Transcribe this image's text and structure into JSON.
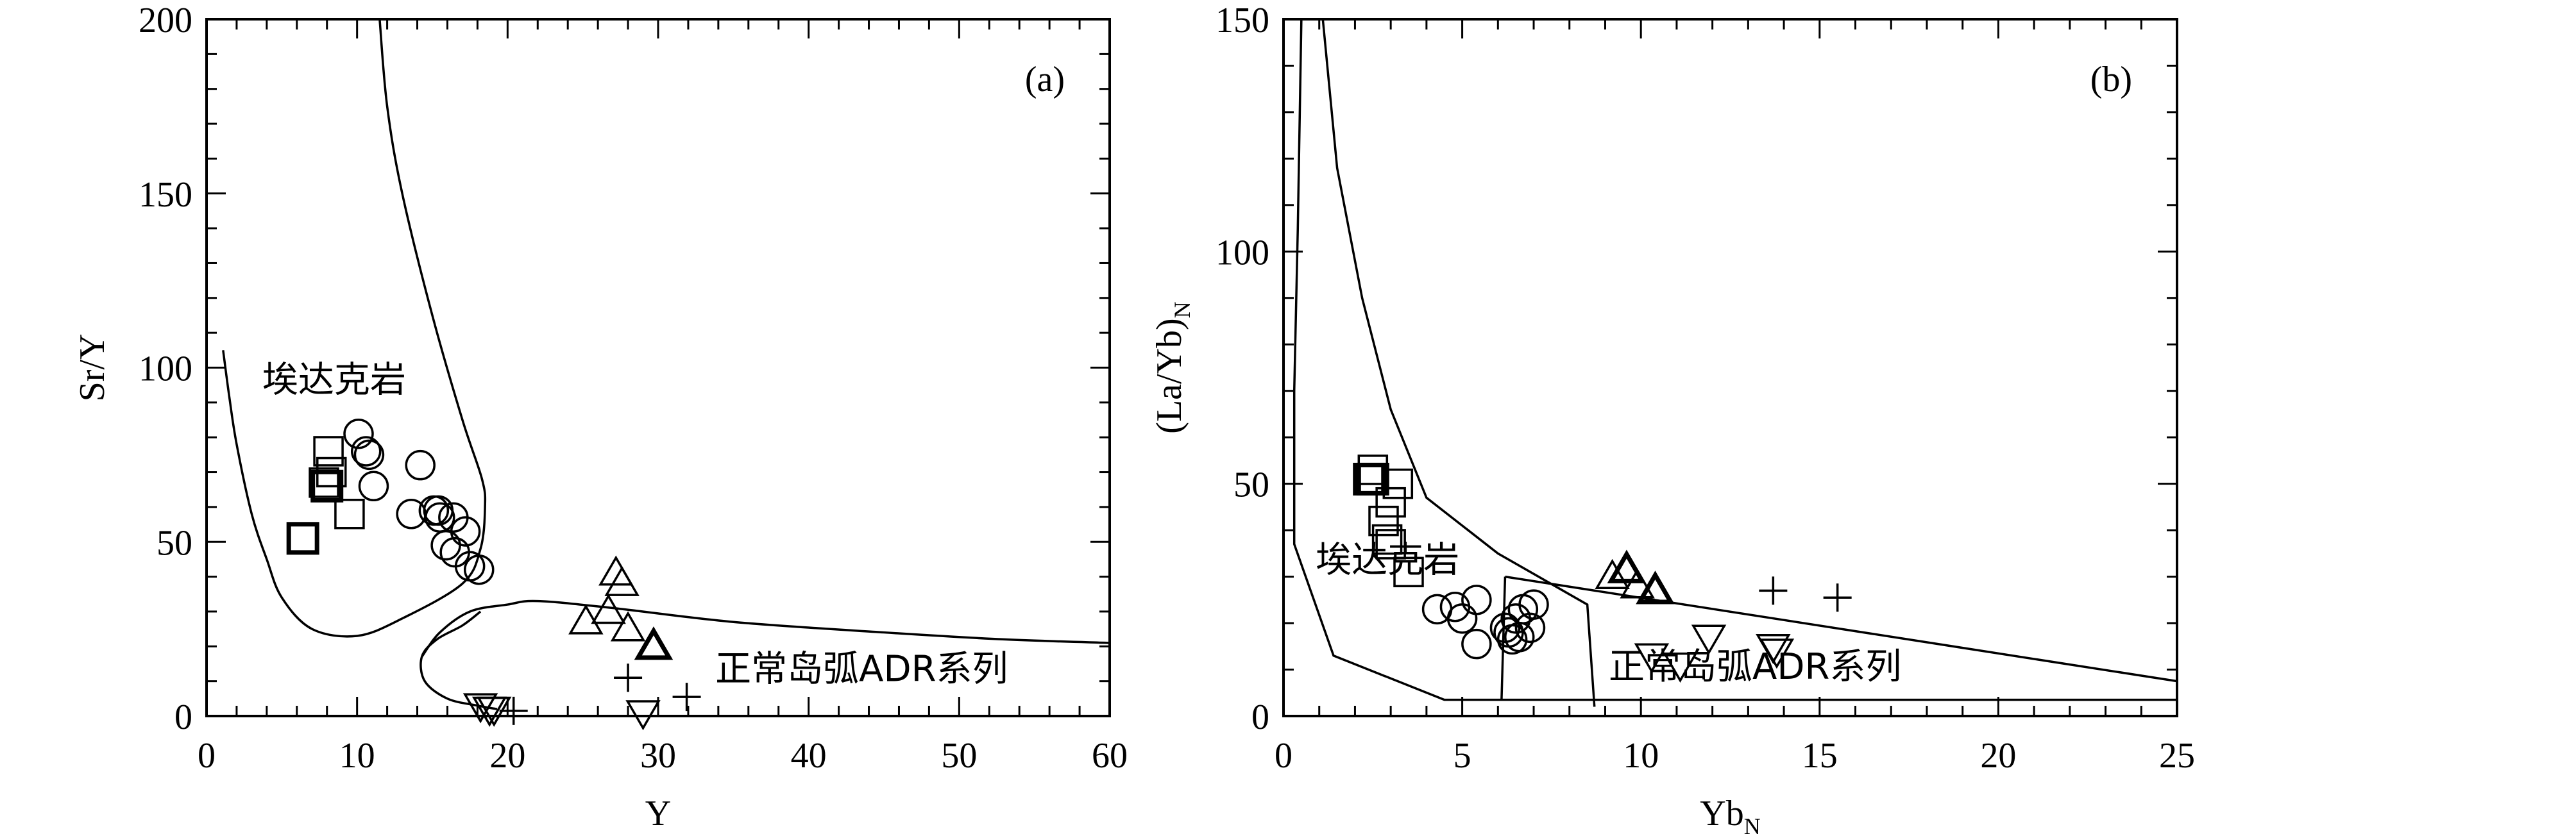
{
  "chart_data": [
    {
      "type": "scatter",
      "panel_label": "(a)",
      "xlabel": "Y",
      "ylabel": "Sr/Y",
      "xlim": [
        0,
        60
      ],
      "ylim": [
        0,
        200
      ],
      "x_ticks": [
        0,
        10,
        20,
        30,
        40,
        50,
        60
      ],
      "y_ticks": [
        0,
        50,
        100,
        150,
        200
      ],
      "x_tick_labels": [
        "0",
        "10",
        "20",
        "30",
        "40",
        "50",
        "60"
      ],
      "y_tick_labels": [
        "0",
        "50",
        "100",
        "150",
        "200"
      ],
      "grid": false,
      "region_labels": [
        {
          "text": "埃达克岩",
          "x": 3.7,
          "y": 93
        },
        {
          "text": "正常岛弧ADR系列",
          "x": 33.8,
          "y": 10
        }
      ],
      "boundary_curves": [
        {
          "points": [
            [
              11.5,
              200
            ],
            [
              12,
              175
            ],
            [
              13,
              150
            ],
            [
              15,
              115
            ],
            [
              17,
              85
            ],
            [
              18.3,
              68
            ],
            [
              18.5,
              60
            ],
            [
              18.2,
              48
            ],
            [
              17,
              38
            ],
            [
              13,
              28
            ],
            [
              10,
              23
            ],
            [
              7,
              25
            ],
            [
              5,
              34
            ],
            [
              4,
              45
            ],
            [
              3,
              58
            ],
            [
              2,
              78
            ],
            [
              1.5,
              92
            ],
            [
              1.1,
              105
            ]
          ]
        },
        {
          "points": [
            [
              18.2,
              30
            ],
            [
              17,
              26
            ],
            [
              15.3,
              22
            ],
            [
              14.3,
              17
            ],
            [
              14.5,
              10
            ],
            [
              16,
              5
            ],
            [
              18,
              3
            ],
            [
              19.3,
              2
            ]
          ]
        },
        {
          "points": [
            [
              14.3,
              17
            ],
            [
              15.5,
              24
            ],
            [
              17.5,
              30
            ],
            [
              20,
              32
            ],
            [
              22,
              33
            ],
            [
              27,
              31
            ],
            [
              35,
              27
            ],
            [
              45,
              24
            ],
            [
              53,
              22
            ],
            [
              60,
              21
            ]
          ]
        }
      ],
      "series": [
        {
          "marker": "open-square",
          "points": [
            [
              8.3,
              70
            ],
            [
              8.1,
              76
            ],
            [
              7.8,
              67
            ],
            [
              9.5,
              58
            ]
          ]
        },
        {
          "marker": "open-square-bold",
          "points": [
            [
              6.4,
              51
            ],
            [
              8,
              66
            ]
          ]
        },
        {
          "marker": "open-circle",
          "points": [
            [
              10.1,
              81
            ],
            [
              10.6,
              76
            ],
            [
              10.8,
              75
            ],
            [
              11.1,
              66
            ],
            [
              14.2,
              72
            ],
            [
              13.6,
              58
            ],
            [
              15.1,
              59
            ],
            [
              15.4,
              59
            ],
            [
              15.5,
              57
            ],
            [
              15.9,
              49
            ],
            [
              16.4,
              57
            ],
            [
              16.5,
              47
            ],
            [
              17.2,
              53
            ],
            [
              17.5,
              43
            ],
            [
              18.1,
              42
            ]
          ]
        },
        {
          "marker": "open-triangle",
          "points": [
            [
              27.2,
              41
            ],
            [
              27.6,
              38
            ],
            [
              25.2,
              27
            ],
            [
              26.7,
              30
            ],
            [
              28,
              25
            ]
          ]
        },
        {
          "marker": "open-triangle-bold",
          "points": [
            [
              29.7,
              20
            ]
          ]
        },
        {
          "marker": "open-triangle-down",
          "points": [
            [
              18.2,
              3
            ],
            [
              19.1,
              2
            ],
            [
              18.8,
              2
            ],
            [
              29,
              1
            ]
          ]
        },
        {
          "marker": "plus",
          "points": [
            [
              28,
              11
            ],
            [
              31.9,
              5.5
            ],
            [
              20.4,
              1.5
            ]
          ]
        }
      ]
    },
    {
      "type": "scatter",
      "panel_label": "(b)",
      "xlabel": "Yb",
      "xlabel_subscript": "N",
      "ylabel": "(La/Yb)",
      "ylabel_subscript": "N",
      "xlim": [
        0,
        25
      ],
      "ylim": [
        0,
        150
      ],
      "x_ticks": [
        0,
        5,
        10,
        15,
        20,
        25
      ],
      "y_ticks": [
        0,
        50,
        100,
        150
      ],
      "x_tick_labels": [
        "0",
        "5",
        "10",
        "15",
        "20",
        "25"
      ],
      "y_tick_labels": [
        "0",
        "50",
        "100",
        "150"
      ],
      "grid": false,
      "region_labels": [
        {
          "text": "埃达克岩",
          "x": 0.9,
          "y": 31
        },
        {
          "text": "正常岛弧ADR系列",
          "x": 9.1,
          "y": 8
        }
      ],
      "boundary_lines": [
        {
          "points": [
            [
              1.1,
              150
            ],
            [
              1.5,
              118
            ],
            [
              2.2,
              90
            ],
            [
              3,
              66
            ],
            [
              4,
              47
            ],
            [
              6,
              35
            ],
            [
              8.5,
              24
            ],
            [
              8.7,
              2
            ]
          ]
        },
        {
          "points": [
            [
              0.5,
              150
            ],
            [
              0.4,
              105
            ],
            [
              0.3,
              70
            ],
            [
              0.3,
              37
            ],
            [
              1.4,
              13
            ],
            [
              4.5,
              3.5
            ],
            [
              25,
              3.5
            ]
          ]
        },
        {
          "points": [
            [
              6.2,
              30
            ],
            [
              25,
              7.5
            ]
          ]
        },
        {
          "points": [
            [
              6.2,
              30
            ],
            [
              6.1,
              3.5
            ]
          ]
        }
      ],
      "series": [
        {
          "marker": "open-square",
          "points": [
            [
              2.5,
              53
            ],
            [
              3.2,
              50
            ],
            [
              3,
              46
            ],
            [
              2.8,
              42
            ],
            [
              3,
              37
            ],
            [
              2.9,
              38
            ],
            [
              3.5,
              31
            ]
          ]
        },
        {
          "marker": "open-square-bold",
          "points": [
            [
              2.4,
              51
            ],
            [
              2.5,
              51
            ]
          ]
        },
        {
          "marker": "open-circle",
          "points": [
            [
              4.3,
              23
            ],
            [
              4.8,
              23.5
            ],
            [
              5,
              21
            ],
            [
              5.4,
              25
            ],
            [
              5.4,
              15.5
            ],
            [
              6.2,
              19
            ],
            [
              6.3,
              18
            ],
            [
              6.5,
              21
            ],
            [
              6.6,
              17
            ],
            [
              6.7,
              23
            ],
            [
              6.9,
              19
            ],
            [
              7,
              24
            ],
            [
              6.4,
              16.5
            ]
          ]
        },
        {
          "marker": "open-triangle",
          "points": [
            [
              9.2,
              30
            ],
            [
              9.9,
              28
            ]
          ]
        },
        {
          "marker": "open-triangle-bold",
          "points": [
            [
              9.6,
              31.5
            ],
            [
              10.4,
              27
            ]
          ]
        },
        {
          "marker": "open-triangle-down",
          "points": [
            [
              10.3,
              13
            ],
            [
              11.1,
              11
            ],
            [
              11.9,
              17
            ],
            [
              13.7,
              15
            ],
            [
              13.8,
              14
            ]
          ]
        },
        {
          "marker": "plus",
          "points": [
            [
              13.7,
              27
            ],
            [
              15.5,
              25.5
            ]
          ]
        }
      ]
    }
  ]
}
